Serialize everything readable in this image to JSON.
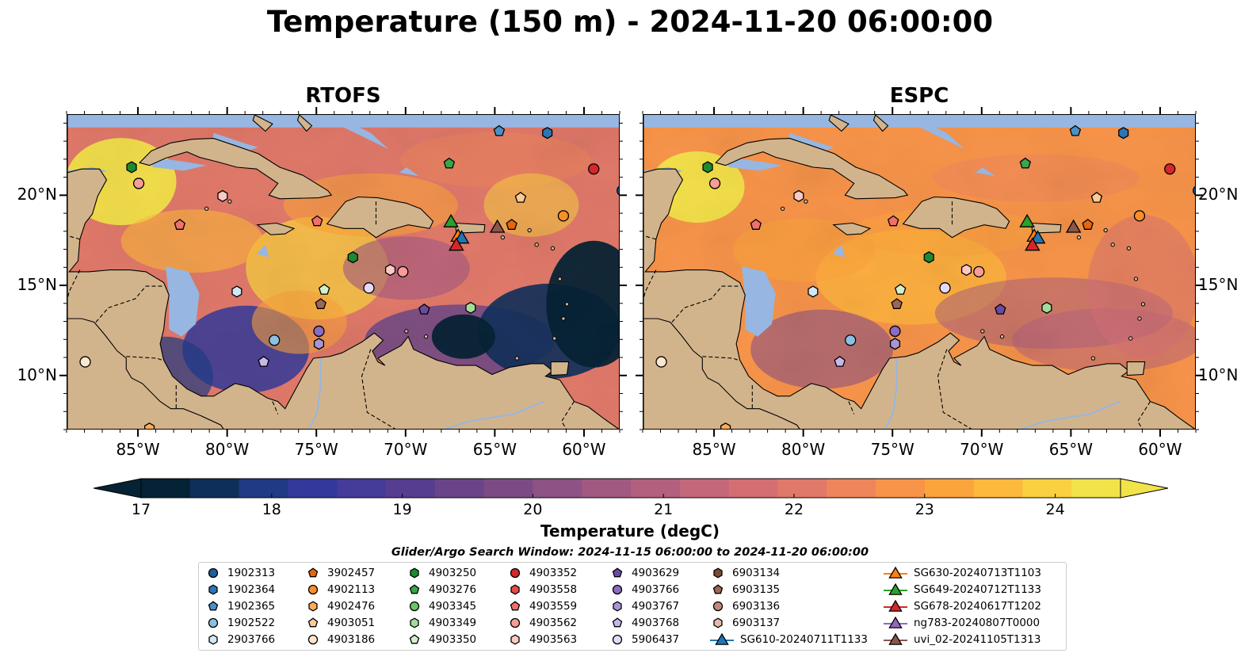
{
  "title": "Temperature (150 m) - 2024-11-20 06:00:00",
  "panels": [
    {
      "id": "rtofs",
      "title": "RTOFS"
    },
    {
      "id": "espc",
      "title": "ESPC"
    }
  ],
  "map_extent": {
    "lon": [
      -89,
      -58
    ],
    "lat": [
      7,
      24.5
    ]
  },
  "lat_ticks": [
    {
      "value": 20,
      "label": "20°N"
    },
    {
      "value": 15,
      "label": "15°N"
    },
    {
      "value": 10,
      "label": "10°N"
    }
  ],
  "lon_ticks": [
    {
      "value": -85,
      "label": "85°W"
    },
    {
      "value": -80,
      "label": "80°W"
    },
    {
      "value": -75,
      "label": "75°W"
    },
    {
      "value": -70,
      "label": "70°W"
    },
    {
      "value": -65,
      "label": "65°W"
    },
    {
      "value": -60,
      "label": "60°W"
    }
  ],
  "colorbar": {
    "ticks": [
      "17",
      "18",
      "19",
      "20",
      "21",
      "22",
      "23",
      "24"
    ],
    "range": [
      17,
      24.5
    ],
    "label": "Temperature (degC)",
    "colors": [
      "#062335",
      "#0e2f5a",
      "#203a84",
      "#33399a",
      "#453b98",
      "#573d8f",
      "#6a4489",
      "#7c4b86",
      "#8e5284",
      "#a15982",
      "#b35f7e",
      "#c4677a",
      "#d36f73",
      "#e1796a",
      "#ee855b",
      "#f8944a",
      "#fca43c",
      "#fdb93b",
      "#f8d040",
      "#f2e34a"
    ]
  },
  "legend": {
    "title": "Glider/Argo Search Window: 2024-11-15 06:00:00 to 2024-11-20 06:00:00",
    "items": [
      {
        "label": "1902313",
        "marker": "circle",
        "color": "#1f5e9e"
      },
      {
        "label": "1902364",
        "marker": "hexagon",
        "color": "#2c75b6"
      },
      {
        "label": "1902365",
        "marker": "pentagon",
        "color": "#4a90c8"
      },
      {
        "label": "1902522",
        "marker": "circle",
        "color": "#8cc0e3"
      },
      {
        "label": "2903766",
        "marker": "hexagon",
        "color": "#d2e7f5"
      },
      {
        "label": "3902457",
        "marker": "pentagon",
        "color": "#e8650c"
      },
      {
        "label": "4902113",
        "marker": "circle",
        "color": "#fa8e2a"
      },
      {
        "label": "4902476",
        "marker": "hexagon",
        "color": "#fdac5a"
      },
      {
        "label": "4903051",
        "marker": "pentagon",
        "color": "#fdca96"
      },
      {
        "label": "4903186",
        "marker": "circle",
        "color": "#fee6cc"
      },
      {
        "label": "4903250",
        "marker": "hexagon",
        "color": "#1e8a2f"
      },
      {
        "label": "4903276",
        "marker": "pentagon",
        "color": "#3aa548"
      },
      {
        "label": "4903345",
        "marker": "circle",
        "color": "#6cc36a"
      },
      {
        "label": "4903349",
        "marker": "hexagon",
        "color": "#a3dc9a"
      },
      {
        "label": "4903350",
        "marker": "pentagon",
        "color": "#d3f0cd"
      },
      {
        "label": "4903352",
        "marker": "circle",
        "color": "#d7262a"
      },
      {
        "label": "4903558",
        "marker": "hexagon",
        "color": "#e84a48"
      },
      {
        "label": "4903559",
        "marker": "pentagon",
        "color": "#f0706a"
      },
      {
        "label": "4903562",
        "marker": "circle",
        "color": "#f69d97"
      },
      {
        "label": "4903563",
        "marker": "hexagon",
        "color": "#fbc9c4"
      },
      {
        "label": "4903629",
        "marker": "pentagon",
        "color": "#6a4ba3"
      },
      {
        "label": "4903766",
        "marker": "circle",
        "color": "#8a6cc0"
      },
      {
        "label": "4903767",
        "marker": "hexagon",
        "color": "#a994d6"
      },
      {
        "label": "4903768",
        "marker": "pentagon",
        "color": "#c8b8ea"
      },
      {
        "label": "5906437",
        "marker": "circle",
        "color": "#e4d9f6"
      },
      {
        "label": "6903134",
        "marker": "hexagon",
        "color": "#7b4a35"
      },
      {
        "label": "6903135",
        "marker": "pentagon",
        "color": "#9c6653"
      },
      {
        "label": "6903136",
        "marker": "circle",
        "color": "#c08c7c"
      },
      {
        "label": "6903137",
        "marker": "hexagon",
        "color": "#e6b8ab"
      },
      {
        "label": "SG610-20240711T1133",
        "marker": "triangle-line",
        "color": "#1f77b4"
      },
      {
        "label": "SG630-20240713T1103",
        "marker": "triangle-line",
        "color": "#ff7f0e"
      },
      {
        "label": "SG649-20240712T1133",
        "marker": "triangle-line",
        "color": "#2ca02c"
      },
      {
        "label": "SG678-20240617T1202",
        "marker": "triangle-line",
        "color": "#d62728"
      },
      {
        "label": "ng783-20240807T0000",
        "marker": "triangle-line",
        "color": "#9467bd"
      },
      {
        "label": "uvi_02-20241105T1313",
        "marker": "triangle-line",
        "color": "#8c564b"
      }
    ]
  },
  "observations": [
    {
      "id": "1902313",
      "lon": -57.9,
      "lat": 20.3
    },
    {
      "id": "1902365",
      "lon": -64.8,
      "lat": 23.6
    },
    {
      "id": "1902364",
      "lon": -62.1,
      "lat": 23.5
    },
    {
      "id": "1902522",
      "lon": -77.4,
      "lat": 12.0
    },
    {
      "id": "2903766",
      "lon": -79.5,
      "lat": 14.7
    },
    {
      "id": "3902457",
      "lon": -64.1,
      "lat": 18.4
    },
    {
      "id": "4902113",
      "lon": -61.2,
      "lat": 18.9
    },
    {
      "id": "4902476",
      "lon": -84.4,
      "lat": 7.1
    },
    {
      "id": "4903051",
      "lon": -63.6,
      "lat": 19.9
    },
    {
      "id": "4903186",
      "lon": -88.0,
      "lat": 10.8
    },
    {
      "id": "4903250",
      "lon": -73.0,
      "lat": 16.6
    },
    {
      "id": "4903250",
      "lon": -85.4,
      "lat": 21.6
    },
    {
      "id": "4903276",
      "lon": -67.6,
      "lat": 21.8
    },
    {
      "id": "4903349",
      "lon": -66.4,
      "lat": 13.8
    },
    {
      "id": "4903350",
      "lon": -74.6,
      "lat": 14.8
    },
    {
      "id": "4903352",
      "lon": -59.5,
      "lat": 21.5
    },
    {
      "id": "4903559",
      "lon": -75.0,
      "lat": 18.6
    },
    {
      "id": "4903562",
      "lon": -85.0,
      "lat": 20.7
    },
    {
      "id": "4903562",
      "lon": -70.2,
      "lat": 15.8
    },
    {
      "id": "4903563",
      "lon": -80.3,
      "lat": 20.0
    },
    {
      "id": "4903563",
      "lon": -70.9,
      "lat": 15.9
    },
    {
      "id": "4903559",
      "lon": -82.7,
      "lat": 18.4
    },
    {
      "id": "4903629",
      "lon": -69.0,
      "lat": 13.7
    },
    {
      "id": "4903766",
      "lon": -74.9,
      "lat": 12.5
    },
    {
      "id": "4903767",
      "lon": -74.9,
      "lat": 11.8
    },
    {
      "id": "4903768",
      "lon": -78.0,
      "lat": 10.8
    },
    {
      "id": "5906437",
      "lon": -72.1,
      "lat": 14.9
    },
    {
      "id": "6903135",
      "lon": -74.8,
      "lat": 14.0
    },
    {
      "id": "SG649-20240712T1133",
      "lon": -67.5,
      "lat": 18.6
    },
    {
      "id": "SG630-20240713T1103",
      "lon": -67.1,
      "lat": 17.8
    },
    {
      "id": "SG610-20240711T1133",
      "lon": -66.9,
      "lat": 17.7
    },
    {
      "id": "SG678-20240617T1202",
      "lon": -67.2,
      "lat": 17.3
    },
    {
      "id": "uvi_02-20241105T1313",
      "lon": -64.9,
      "lat": 18.3
    }
  ]
}
